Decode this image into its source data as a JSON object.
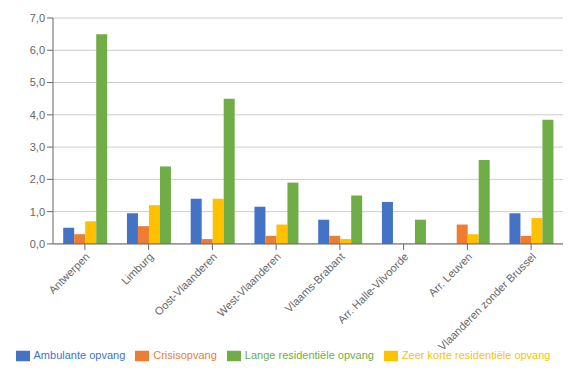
{
  "chart_data": {
    "type": "bar",
    "categories": [
      "Antwerpen",
      "Limburg",
      "Oost-Vlaanderen",
      "West-Vlaanderen",
      "Vlaams-Brabant",
      "Arr. Halle-Vilvoorde",
      "Arr. Leuven",
      "Vlaanderen zonder Brussel"
    ],
    "series": [
      {
        "name": "Ambulante opvang",
        "color": "#4472C4",
        "values": [
          0.5,
          0.95,
          1.4,
          1.15,
          0.75,
          1.3,
          0.0,
          0.95
        ]
      },
      {
        "name": "Crisisopvang",
        "color": "#ED7D31",
        "values": [
          0.3,
          0.55,
          0.15,
          0.25,
          0.25,
          0.0,
          0.6,
          0.25
        ]
      },
      {
        "name": "Zeer korte residentiële opvang",
        "color": "#FFC000",
        "values": [
          0.7,
          1.2,
          1.4,
          0.6,
          0.15,
          0.0,
          0.3,
          0.8
        ]
      },
      {
        "name": "Lange residentiële opvang",
        "color": "#70AD47",
        "values": [
          6.5,
          2.4,
          4.5,
          1.9,
          1.5,
          0.75,
          2.6,
          3.85
        ]
      }
    ],
    "ylim": [
      0,
      7.0
    ],
    "yticks": [
      {
        "value": 0.0,
        "label": "0,0"
      },
      {
        "value": 1.0,
        "label": "1,0"
      },
      {
        "value": 2.0,
        "label": "2,0"
      },
      {
        "value": 3.0,
        "label": "3,0"
      },
      {
        "value": 4.0,
        "label": "4,0"
      },
      {
        "value": 5.0,
        "label": "5,0"
      },
      {
        "value": 6.0,
        "label": "6,0"
      },
      {
        "value": 7.0,
        "label": "7,0"
      }
    ],
    "grid": true,
    "legend": "bottom"
  }
}
